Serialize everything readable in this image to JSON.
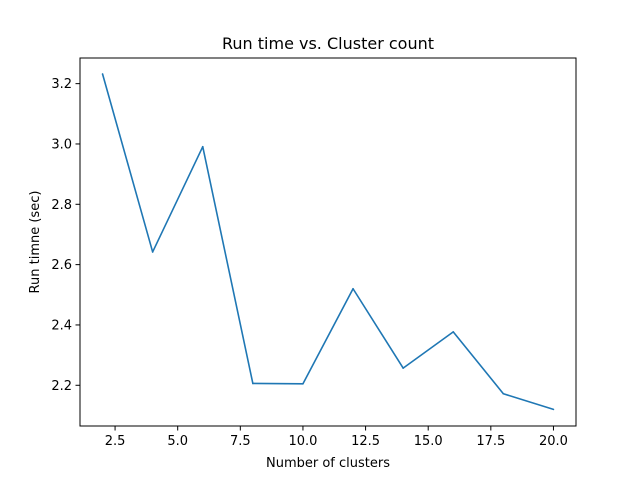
{
  "chart_data": {
    "type": "line",
    "title": "Run time vs. Cluster count",
    "xlabel": "Number of clusters",
    "ylabel": "Run timne (sec)",
    "xlim": [
      1.1,
      20.9
    ],
    "ylim": [
      2.065,
      3.285
    ],
    "xticks": [
      2.5,
      5.0,
      7.5,
      10.0,
      12.5,
      15.0,
      17.5,
      20.0
    ],
    "xtick_labels": [
      "2.5",
      "5.0",
      "7.5",
      "10.0",
      "12.5",
      "15.0",
      "17.5",
      "20.0"
    ],
    "yticks": [
      2.2,
      2.4,
      2.6,
      2.8,
      3.0,
      3.2
    ],
    "ytick_labels": [
      "2.2",
      "2.4",
      "2.6",
      "2.8",
      "3.0",
      "3.2"
    ],
    "grid": false,
    "series": [
      {
        "color": "#1f77b4",
        "x": [
          2,
          4,
          6,
          8,
          10,
          12,
          14,
          16,
          18,
          20
        ],
        "y": [
          3.232,
          2.642,
          2.991,
          2.206,
          2.205,
          2.52,
          2.257,
          2.377,
          2.172,
          2.12
        ]
      }
    ]
  }
}
